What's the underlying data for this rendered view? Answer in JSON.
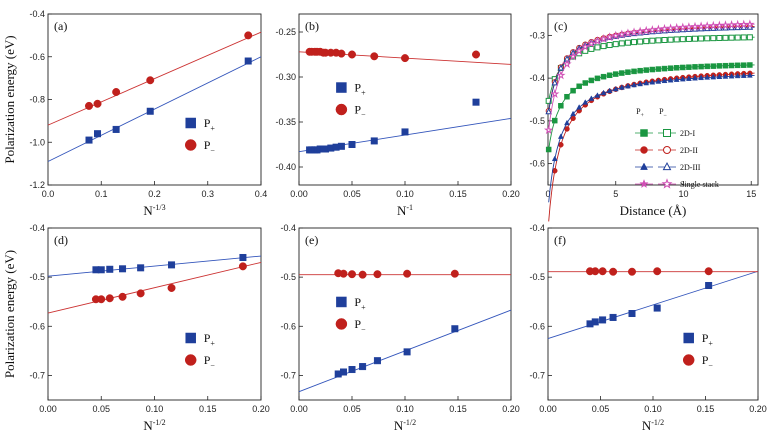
{
  "chart_data": [
    {
      "id": "a",
      "type": "scatter",
      "label": "(a)",
      "xlabel": "N",
      "xlabel_sup": "-1/3",
      "ylabel": "Polarization energy (eV)",
      "xlim": [
        0,
        0.4
      ],
      "ylim": [
        -1.2,
        -0.4
      ],
      "xticks": [
        0.0,
        0.1,
        0.2,
        0.3,
        0.4
      ],
      "xtick_labels": [
        "0.0",
        "0.1",
        "0.2",
        "0.3",
        "0.4"
      ],
      "yticks": [
        -1.2,
        -1.0,
        -0.8,
        -0.6,
        -0.4
      ],
      "ytick_labels": [
        "-1.2",
        "-1.0",
        "-0.8",
        "-0.6",
        "-0.4"
      ],
      "series": [
        {
          "name": "P",
          "sub": "+",
          "marker": "square",
          "color": "#1f3f9b",
          "line_color": "#3355bb",
          "x": [
            0.077,
            0.093,
            0.128,
            0.192,
            0.376
          ],
          "y": [
            -0.99,
            -0.96,
            -0.94,
            -0.855,
            -0.62
          ],
          "fit": [
            [
              0,
              -1.09
            ],
            [
              0.4,
              -0.6
            ]
          ]
        },
        {
          "name": "P",
          "sub": "−",
          "marker": "circle",
          "color": "#c0201c",
          "line_color": "#cc3333",
          "x": [
            0.077,
            0.093,
            0.128,
            0.192,
            0.376
          ],
          "y": [
            -0.83,
            -0.82,
            -0.765,
            -0.71,
            -0.5
          ],
          "fit": [
            [
              0,
              -0.92
            ],
            [
              0.4,
              -0.485
            ]
          ]
        }
      ],
      "legend": "bottom-right"
    },
    {
      "id": "b",
      "type": "scatter",
      "label": "(b)",
      "xlabel": "N",
      "xlabel_sup": "-1",
      "ylabel": "",
      "xlim": [
        0,
        0.2
      ],
      "ylim": [
        -0.42,
        -0.23
      ],
      "xticks": [
        0.0,
        0.05,
        0.1,
        0.15,
        0.2
      ],
      "xtick_labels": [
        "0.00",
        "0.05",
        "0.10",
        "0.15",
        "0.20"
      ],
      "yticks": [
        -0.4,
        -0.35,
        -0.3,
        -0.25
      ],
      "ytick_labels": [
        "-0.40",
        "-0.35",
        "-0.30",
        "-0.25"
      ],
      "series": [
        {
          "name": "P",
          "sub": "+",
          "marker": "square",
          "color": "#1f3f9b",
          "line_color": "#3355bb",
          "x": [
            0.01,
            0.012,
            0.015,
            0.017,
            0.02,
            0.023,
            0.025,
            0.03,
            0.035,
            0.04,
            0.05,
            0.071,
            0.1,
            0.167
          ],
          "y": [
            -0.381,
            -0.381,
            -0.381,
            -0.381,
            -0.38,
            -0.38,
            -0.38,
            -0.379,
            -0.378,
            -0.377,
            -0.375,
            -0.371,
            -0.361,
            -0.328
          ],
          "fit": [
            [
              0,
              -0.383
            ],
            [
              0.2,
              -0.346
            ]
          ]
        },
        {
          "name": "P",
          "sub": "−",
          "marker": "circle",
          "color": "#c0201c",
          "line_color": "#cc3333",
          "x": [
            0.01,
            0.012,
            0.015,
            0.017,
            0.02,
            0.023,
            0.025,
            0.03,
            0.035,
            0.04,
            0.05,
            0.071,
            0.1,
            0.167
          ],
          "y": [
            -0.272,
            -0.272,
            -0.272,
            -0.272,
            -0.272,
            -0.273,
            -0.273,
            -0.273,
            -0.273,
            -0.274,
            -0.275,
            -0.277,
            -0.279,
            -0.275
          ],
          "fit": [
            [
              0,
              -0.272
            ],
            [
              0.2,
              -0.286
            ]
          ]
        }
      ],
      "legend": "center-left"
    },
    {
      "id": "c",
      "type": "line",
      "label": "(c)",
      "xlabel": "Distance (Å)",
      "xlabel_sup": "",
      "ylabel": "",
      "xlim": [
        0,
        15.5
      ],
      "ylim": [
        -0.65,
        -0.25
      ],
      "xticks": [
        0,
        5,
        10,
        15
      ],
      "xtick_labels": [
        "0",
        "5",
        "10",
        "15"
      ],
      "yticks": [
        -0.6,
        -0.5,
        -0.4,
        -0.3
      ],
      "ytick_labels": [
        "-0.6",
        "-0.5",
        "-0.4",
        "-0.3"
      ],
      "legend_title_plus": "P",
      "legend_title_plus_sub": "+",
      "legend_title_minus": "P",
      "legend_title_minus_sub": "−",
      "series": [
        {
          "name": "2D-I",
          "marker": "square",
          "color": "#1a9641",
          "plus": {
            "A": -0.35,
            "B": 0.0222
          },
          "minus": {
            "A": -0.29,
            "B": 0.0167
          }
        },
        {
          "name": "2D-II",
          "marker": "circle",
          "color": "#c0201c",
          "plus": {
            "A": -0.355,
            "B": 0.0389
          },
          "minus": {
            "A": -0.26,
            "B": 0.0222
          }
        },
        {
          "name": "2D-III",
          "marker": "triangle",
          "color": "#1f3f9b",
          "plus": {
            "A": -0.365,
            "B": 0.0333
          },
          "minus": {
            "A": -0.262,
            "B": 0.0222
          }
        },
        {
          "name": "Single stack",
          "marker": "star",
          "color": "#d04fb5",
          "plus": null,
          "minus": {
            "A": -0.25,
            "B": 0.0278
          }
        }
      ]
    },
    {
      "id": "d",
      "type": "scatter",
      "label": "(d)",
      "xlabel": "N",
      "xlabel_sup": "-1/2",
      "ylabel": "Polarization energy (eV)",
      "xlim": [
        0,
        0.2
      ],
      "ylim": [
        -0.75,
        -0.4
      ],
      "xticks": [
        0.0,
        0.05,
        0.1,
        0.15,
        0.2
      ],
      "xtick_labels": [
        "0.00",
        "0.05",
        "0.10",
        "0.15",
        "0.20"
      ],
      "yticks": [
        -0.7,
        -0.6,
        -0.5,
        -0.4
      ],
      "ytick_labels": [
        "-0.7",
        "-0.6",
        "-0.5",
        "-0.4"
      ],
      "series": [
        {
          "name": "P",
          "sub": "+",
          "marker": "square",
          "color": "#1f3f9b",
          "line_color": "#3355bb",
          "x": [
            0.045,
            0.05,
            0.058,
            0.07,
            0.087,
            0.116,
            0.183
          ],
          "y": [
            -0.485,
            -0.485,
            -0.484,
            -0.483,
            -0.481,
            -0.475,
            -0.46
          ],
          "fit": [
            [
              0,
              -0.498
            ],
            [
              0.2,
              -0.457
            ]
          ]
        },
        {
          "name": "P",
          "sub": "−",
          "marker": "circle",
          "color": "#c0201c",
          "line_color": "#cc3333",
          "x": [
            0.045,
            0.05,
            0.058,
            0.07,
            0.087,
            0.116,
            0.183
          ],
          "y": [
            -0.545,
            -0.545,
            -0.543,
            -0.54,
            -0.533,
            -0.522,
            -0.478
          ],
          "fit": [
            [
              0,
              -0.573
            ],
            [
              0.2,
              -0.47
            ]
          ]
        }
      ],
      "legend": "bottom-right"
    },
    {
      "id": "e",
      "type": "scatter",
      "label": "(e)",
      "xlabel": "N",
      "xlabel_sup": "-1/2",
      "ylabel": "",
      "xlim": [
        0,
        0.2
      ],
      "ylim": [
        -0.75,
        -0.4
      ],
      "xticks": [
        0.0,
        0.05,
        0.1,
        0.15,
        0.2
      ],
      "xtick_labels": [
        "0.00",
        "0.05",
        "0.10",
        "0.15",
        "0.20"
      ],
      "yticks": [
        -0.7,
        -0.6,
        -0.5,
        -0.4
      ],
      "ytick_labels": [
        "-0.7",
        "-0.6",
        "-0.5",
        "-0.4"
      ],
      "series": [
        {
          "name": "P",
          "sub": "+",
          "marker": "square",
          "color": "#1f3f9b",
          "line_color": "#3355bb",
          "x": [
            0.037,
            0.042,
            0.05,
            0.06,
            0.074,
            0.102,
            0.147
          ],
          "y": [
            -0.697,
            -0.693,
            -0.688,
            -0.682,
            -0.67,
            -0.652,
            -0.605
          ],
          "fit": [
            [
              0,
              -0.733
            ],
            [
              0.2,
              -0.567
            ]
          ]
        },
        {
          "name": "P",
          "sub": "−",
          "marker": "circle",
          "color": "#c0201c",
          "line_color": "#cc3333",
          "x": [
            0.037,
            0.042,
            0.05,
            0.06,
            0.074,
            0.102,
            0.147
          ],
          "y": [
            -0.492,
            -0.493,
            -0.494,
            -0.495,
            -0.494,
            -0.493,
            -0.493
          ],
          "fit": [
            [
              0,
              -0.495
            ],
            [
              0.2,
              -0.495
            ]
          ]
        }
      ],
      "legend": "center-left"
    },
    {
      "id": "f",
      "type": "scatter",
      "label": "(f)",
      "xlabel": "N",
      "xlabel_sup": "-1/2",
      "ylabel": "",
      "xlim": [
        0,
        0.2
      ],
      "ylim": [
        -0.75,
        -0.4
      ],
      "xticks": [
        0.0,
        0.05,
        0.1,
        0.15,
        0.2
      ],
      "xtick_labels": [
        "0.00",
        "0.05",
        "0.10",
        "0.15",
        "0.20"
      ],
      "yticks": [
        -0.7,
        -0.6,
        -0.5,
        -0.4
      ],
      "ytick_labels": [
        "-0.7",
        "-0.6",
        "-0.5",
        "-0.4"
      ],
      "series": [
        {
          "name": "P",
          "sub": "+",
          "marker": "square",
          "color": "#1f3f9b",
          "line_color": "#3355bb",
          "x": [
            0.04,
            0.045,
            0.052,
            0.062,
            0.08,
            0.104,
            0.153
          ],
          "y": [
            -0.595,
            -0.591,
            -0.587,
            -0.582,
            -0.574,
            -0.563,
            -0.517
          ],
          "fit": [
            [
              0,
              -0.625
            ],
            [
              0.2,
              -0.488
            ]
          ]
        },
        {
          "name": "P",
          "sub": "−",
          "marker": "circle",
          "color": "#c0201c",
          "line_color": "#cc3333",
          "x": [
            0.04,
            0.045,
            0.052,
            0.062,
            0.08,
            0.104,
            0.153
          ],
          "y": [
            -0.488,
            -0.488,
            -0.488,
            -0.489,
            -0.489,
            -0.488,
            -0.488
          ],
          "fit": [
            [
              0,
              -0.489
            ],
            [
              0.2,
              -0.489
            ]
          ]
        }
      ],
      "legend": "bottom-right"
    }
  ]
}
